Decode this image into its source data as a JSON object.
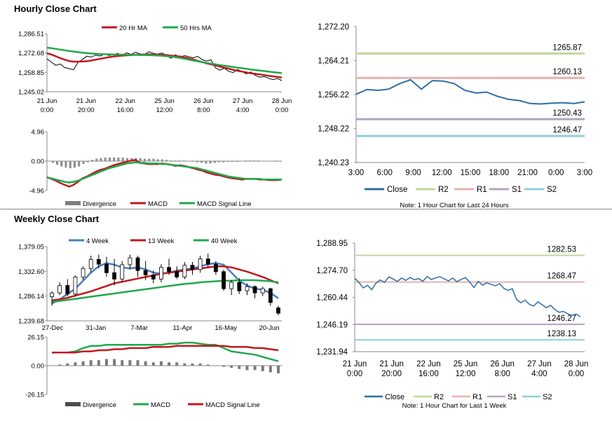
{
  "titles": {
    "hourly": "Hourly Close Chart",
    "weekly": "Weekly Close Chart"
  },
  "colors": {
    "red": "#c0181f",
    "green": "#1fa84b",
    "blue": "#4a7ebb",
    "darkblue": "#2e6da4",
    "r2": "#c3d69b",
    "r1": "#e6b0ae",
    "s1": "#b3a2c7",
    "s2": "#92cddc",
    "gray": "#7f7f7f"
  },
  "chart_data": [
    {
      "id": "hourly_price",
      "type": "line",
      "legend": [
        "20 Hr MA",
        "50 Hrs MA"
      ],
      "y_ticks": [
        "1,286.51",
        "1,272.68",
        "1,258.85",
        "1,245.02"
      ],
      "ylim": [
        1245.02,
        1286.51
      ],
      "x_ticks": [
        [
          "21 Jun",
          "0:00"
        ],
        [
          "21 Jun",
          "20:00"
        ],
        [
          "22 Jun",
          "16:00"
        ],
        [
          "25 Jun",
          "12:00"
        ],
        [
          "26 Jun",
          "8:00"
        ],
        [
          "27 Jun",
          "4:00"
        ],
        [
          "28 Jun",
          "0:00"
        ]
      ],
      "series": [
        {
          "name": "Close",
          "values": [
            1268.5,
            1266.2,
            1263.9,
            1264.8,
            1262.3,
            1261.5,
            1260.7,
            1265.9,
            1268.1,
            1270.4,
            1269.8,
            1271.2,
            1270.5,
            1272.0,
            1270.9,
            1271.6,
            1272.3,
            1271.0,
            1272.8,
            1271.7,
            1273.2,
            1272.0,
            1271.5,
            1273.6,
            1272.4,
            1271.9,
            1272.7,
            1270.8,
            1268.9,
            1271.4,
            1269.6,
            1270.8,
            1270.1,
            1269.2,
            1270.3,
            1268.0,
            1266.9,
            1267.8,
            1262.1,
            1260.4,
            1261.8,
            1259.6,
            1258.7,
            1260.9,
            1259.4,
            1257.8,
            1259.1,
            1256.8,
            1255.4,
            1255.9,
            1254.6,
            1253.7,
            1254.5,
            1253.0
          ]
        },
        {
          "name": "20 Hr MA",
          "values": [
            1272.5,
            1271.6,
            1270.3,
            1269.0,
            1267.9,
            1266.9,
            1266.5,
            1266.5,
            1266.6,
            1266.8,
            1267.3,
            1267.9,
            1268.5,
            1269.1,
            1269.7,
            1270.2,
            1270.5,
            1270.8,
            1271.0,
            1271.2,
            1271.4,
            1271.5,
            1271.6,
            1271.7,
            1271.7,
            1271.6,
            1271.4,
            1271.2,
            1270.8,
            1270.5,
            1270.2,
            1269.6,
            1268.9,
            1268.0,
            1267.1,
            1266.2,
            1265.3,
            1264.6,
            1263.8,
            1263.0,
            1262.2,
            1261.5,
            1260.7,
            1260.0,
            1259.4,
            1258.8,
            1258.2,
            1257.8,
            1257.4,
            1256.9,
            1256.4,
            1256.0,
            1255.6,
            1255.1
          ]
        },
        {
          "name": "50 Hrs MA",
          "values": [
            1276.5,
            1276.1,
            1275.6,
            1275.1,
            1274.6,
            1274.1,
            1273.7,
            1273.3,
            1272.9,
            1272.6,
            1272.3,
            1272.1,
            1271.9,
            1271.8,
            1271.7,
            1271.6,
            1271.5,
            1271.5,
            1271.4,
            1271.3,
            1271.3,
            1271.2,
            1271.2,
            1271.1,
            1271.0,
            1270.9,
            1270.7,
            1270.4,
            1270.1,
            1269.7,
            1269.2,
            1268.6,
            1267.9,
            1267.3,
            1266.8,
            1266.2,
            1265.6,
            1265.1,
            1264.6,
            1264.1,
            1263.6,
            1263.2,
            1262.7,
            1262.2,
            1261.8,
            1261.4,
            1260.9,
            1260.5,
            1260.1,
            1259.8,
            1259.4,
            1259.0,
            1258.7,
            1258.3
          ]
        }
      ]
    },
    {
      "id": "hourly_macd",
      "type": "bar",
      "legend": [
        "Divergence",
        "MACD",
        "MACD Signal Line"
      ],
      "y_ticks": [
        "4.96",
        "0.00",
        "-4.96"
      ],
      "ylim": [
        -4.96,
        4.96
      ],
      "series": [
        {
          "name": "Divergence",
          "values": [
            0,
            -0.3,
            -0.6,
            -0.9,
            -1.1,
            -1.2,
            -1.1,
            -0.9,
            -0.5,
            -0.2,
            0.2,
            0.4,
            0.5,
            0.6,
            0.6,
            0.6,
            0.6,
            0.6,
            0.5,
            0.5,
            0.5,
            0.5,
            0.4,
            0.4,
            0.4,
            0.3,
            0.3,
            0.2,
            0.1,
            0.1,
            0.1,
            0.1,
            0,
            -0.1,
            -0.2,
            -0.3,
            -0.4,
            -0.4,
            -0.3,
            -0.2,
            -0.2,
            -0.1,
            -0.1,
            -0.1,
            0,
            0.1,
            0.1,
            0.1,
            0.1,
            0,
            0,
            0,
            -0.1,
            -0.1
          ]
        },
        {
          "name": "MACD",
          "values": [
            -2.7,
            -3.0,
            -3.3,
            -3.7,
            -4.0,
            -4.3,
            -4.0,
            -3.5,
            -2.9,
            -2.6,
            -2.2,
            -1.8,
            -1.5,
            -1.3,
            -1.0,
            -0.7,
            -0.5,
            -0.3,
            -0.1,
            0.1,
            0.2,
            -0.3,
            -0.4,
            -0.5,
            -0.5,
            -0.5,
            -0.4,
            -0.5,
            -0.6,
            -0.8,
            -0.7,
            -0.8,
            -1.0,
            -1.2,
            -1.4,
            -1.6,
            -1.9,
            -2.1,
            -2.3,
            -2.4,
            -2.6,
            -2.8,
            -2.9,
            -3.0,
            -3.1,
            -3.0,
            -3.0,
            -3.0,
            -3.1,
            -3.1,
            -3.2,
            -3.2,
            -3.2,
            -3.1
          ]
        },
        {
          "name": "MACD Signal Line",
          "values": [
            -2.8,
            -2.9,
            -3.1,
            -3.3,
            -3.5,
            -3.6,
            -3.5,
            -3.3,
            -3.0,
            -2.7,
            -2.4,
            -2.1,
            -1.8,
            -1.5,
            -1.2,
            -1.0,
            -0.8,
            -0.6,
            -0.4,
            -0.3,
            -0.2,
            -0.3,
            -0.3,
            -0.4,
            -0.4,
            -0.4,
            -0.5,
            -0.5,
            -0.6,
            -0.7,
            -0.8,
            -0.9,
            -1.0,
            -1.1,
            -1.2,
            -1.4,
            -1.6,
            -1.8,
            -2.0,
            -2.2,
            -2.4,
            -2.6,
            -2.7,
            -2.8,
            -2.9,
            -3.0,
            -3.0,
            -3.0,
            -3.0,
            -3.1,
            -3.1,
            -3.1,
            -3.1,
            -3.1
          ]
        }
      ]
    },
    {
      "id": "hourly_pivots",
      "type": "line",
      "y_ticks": [
        "1,272.20",
        "1,264.21",
        "1,256.22",
        "1,248.22",
        "1,240.23"
      ],
      "ylim": [
        1240.23,
        1272.2
      ],
      "x_ticks": [
        "3:00",
        "6:00",
        "9:00",
        "12:00",
        "15:00",
        "18:00",
        "21:00",
        "0:00",
        "3:00"
      ],
      "levels": [
        {
          "name": "R2",
          "value": 1265.87,
          "label": "1265.87"
        },
        {
          "name": "R1",
          "value": 1260.13,
          "label": "1260.13"
        },
        {
          "name": "S1",
          "value": 1250.43,
          "label": "1250.43"
        },
        {
          "name": "S2",
          "value": 1246.47,
          "label": "1246.47"
        }
      ],
      "series": [
        {
          "name": "Close",
          "values": [
            1256.3,
            1257.4,
            1257.2,
            1257.5,
            1258.8,
            1259.7,
            1257.5,
            1259.5,
            1259.4,
            1258.8,
            1257.2,
            1256.6,
            1256.8,
            1255.8,
            1255.1,
            1254.8,
            1254.1,
            1254.0,
            1254.2,
            1254.3,
            1254.1,
            1254.5
          ]
        }
      ],
      "legend": [
        "Close",
        "R2",
        "R1",
        "S1",
        "S2"
      ],
      "note": "Note: 1 Hour Chart for Last 24 Hours"
    },
    {
      "id": "weekly_price",
      "type": "candlestick",
      "legend": [
        "4 Week",
        "13 Week",
        "40 Week"
      ],
      "y_ticks": [
        "1,379.05",
        "1,332.60",
        "1,286.14",
        "1,239.68"
      ],
      "ylim": [
        1239.68,
        1379.05
      ],
      "x_ticks": [
        "27-Dec",
        "31-Jan",
        "7-Mar",
        "11-Apr",
        "16-May",
        "20-Jun"
      ],
      "candles": [
        [
          1285,
          1295,
          1268,
          1292
        ],
        [
          1292,
          1312,
          1288,
          1306
        ],
        [
          1306,
          1318,
          1286,
          1290
        ],
        [
          1290,
          1325,
          1285,
          1322
        ],
        [
          1322,
          1342,
          1316,
          1338
        ],
        [
          1338,
          1362,
          1330,
          1355
        ],
        [
          1355,
          1364,
          1338,
          1346
        ],
        [
          1346,
          1360,
          1322,
          1330
        ],
        [
          1330,
          1356,
          1306,
          1318
        ],
        [
          1318,
          1352,
          1312,
          1345
        ],
        [
          1345,
          1364,
          1336,
          1358
        ],
        [
          1358,
          1362,
          1322,
          1334
        ],
        [
          1334,
          1352,
          1316,
          1326
        ],
        [
          1326,
          1334,
          1310,
          1318
        ],
        [
          1318,
          1346,
          1312,
          1340
        ],
        [
          1340,
          1356,
          1326,
          1332
        ],
        [
          1332,
          1342,
          1318,
          1322
        ],
        [
          1322,
          1350,
          1318,
          1344
        ],
        [
          1344,
          1350,
          1326,
          1336
        ],
        [
          1336,
          1362,
          1330,
          1356
        ],
        [
          1356,
          1366,
          1340,
          1346
        ],
        [
          1346,
          1352,
          1326,
          1332
        ],
        [
          1332,
          1336,
          1296,
          1300
        ],
        [
          1300,
          1316,
          1288,
          1312
        ],
        [
          1312,
          1320,
          1290,
          1296
        ],
        [
          1296,
          1310,
          1288,
          1304
        ],
        [
          1304,
          1306,
          1282,
          1292
        ],
        [
          1292,
          1304,
          1286,
          1300
        ],
        [
          1300,
          1302,
          1268,
          1274
        ],
        [
          1264,
          1268,
          1250,
          1254
        ]
      ],
      "series": [
        {
          "name": "4 Week",
          "values": [
            1272,
            1280,
            1290,
            1300,
            1315,
            1330,
            1342,
            1348,
            1345,
            1340,
            1338,
            1340,
            1336,
            1330,
            1328,
            1330,
            1334,
            1336,
            1338,
            1342,
            1346,
            1348,
            1345,
            1330,
            1315,
            1306,
            1300,
            1298,
            1292,
            1282
          ]
        },
        {
          "name": "13 Week",
          "values": [
            1278,
            1280,
            1283,
            1287,
            1291,
            1295,
            1300,
            1305,
            1310,
            1313,
            1316,
            1319,
            1322,
            1325,
            1328,
            1330,
            1332,
            1334,
            1336,
            1338,
            1340,
            1342,
            1342,
            1340,
            1336,
            1332,
            1327,
            1322,
            1316,
            1310
          ]
        },
        {
          "name": "40 Week",
          "values": [
            1275,
            1277,
            1279,
            1281,
            1283,
            1285,
            1287,
            1289,
            1291,
            1293,
            1295,
            1297,
            1299,
            1301,
            1303,
            1305,
            1307,
            1309,
            1310,
            1312,
            1313,
            1314,
            1315,
            1315,
            1316,
            1316,
            1316,
            1315,
            1314,
            1312
          ]
        }
      ]
    },
    {
      "id": "weekly_macd",
      "type": "bar",
      "legend": [
        "Divergence",
        "MACD",
        "MACD Signal Line"
      ],
      "y_ticks": [
        "26.15",
        "0.00",
        "-26.15"
      ],
      "ylim": [
        -26.15,
        26.15
      ],
      "series": [
        {
          "name": "Divergence",
          "values": [
            0,
            1,
            2,
            3,
            4,
            5,
            5,
            6,
            6,
            5,
            5,
            5,
            4,
            3,
            4,
            3,
            3,
            2,
            2,
            2,
            1,
            0,
            -1,
            -2,
            -3,
            -4,
            -4,
            -5,
            -6,
            -7
          ]
        },
        {
          "name": "MACD",
          "values": [
            12,
            12,
            12,
            13,
            16,
            18,
            18,
            19,
            19,
            19,
            19,
            19,
            19,
            19,
            19,
            20,
            20,
            21,
            21,
            20,
            19,
            19,
            16,
            13,
            12,
            11,
            10,
            8,
            6,
            4
          ]
        },
        {
          "name": "MACD Signal Line",
          "values": [
            12,
            12,
            12,
            12,
            13,
            13,
            14,
            14,
            15,
            15,
            16,
            16,
            16,
            17,
            17,
            17,
            18,
            18,
            18,
            18,
            18,
            18,
            18,
            17,
            17,
            17,
            16,
            16,
            15,
            14
          ]
        }
      ]
    },
    {
      "id": "weekly_pivots",
      "type": "line",
      "y_ticks": [
        "1,288.95",
        "1,274.70",
        "1,260.44",
        "1,246.19",
        "1,231.94"
      ],
      "ylim": [
        1231.94,
        1288.95
      ],
      "x_ticks": [
        [
          "21 Jun",
          "0:00"
        ],
        [
          "21 Jun",
          "20:00"
        ],
        [
          "22 Jun",
          "16:00"
        ],
        [
          "25 Jun",
          "12:00"
        ],
        [
          "26 Jun",
          "8:00"
        ],
        [
          "27 Jun",
          "4:00"
        ],
        [
          "28 Jun",
          "0:00"
        ]
      ],
      "levels": [
        {
          "name": "R2",
          "value": 1282.53,
          "label": "1282.53"
        },
        {
          "name": "R1",
          "value": 1268.47,
          "label": "1268.47"
        },
        {
          "name": "S1",
          "value": 1246.27,
          "label": "1246.27"
        },
        {
          "name": "S2",
          "value": 1238.13,
          "label": "1238.13"
        }
      ],
      "series": [
        {
          "name": "Close",
          "values": [
            1270.5,
            1268.2,
            1265.4,
            1266.8,
            1264.5,
            1267.9,
            1269.6,
            1268.3,
            1271.2,
            1270.1,
            1268.8,
            1270.6,
            1269.4,
            1270.9,
            1269.7,
            1270.3,
            1268.9,
            1271.4,
            1269.8,
            1270.7,
            1271.3,
            1270.2,
            1269.1,
            1270.6,
            1268.7,
            1269.9,
            1270.8,
            1268.5,
            1265.6,
            1268.9,
            1266.8,
            1268.1,
            1267.3,
            1266.5,
            1267.6,
            1265.2,
            1264.1,
            1265.0,
            1259.3,
            1257.6,
            1259.0,
            1256.8,
            1255.9,
            1258.1,
            1256.6,
            1255.0,
            1256.3,
            1254.0,
            1252.6,
            1253.1,
            1251.8,
            1250.9,
            1251.7,
            1250.2
          ]
        }
      ],
      "legend": [
        "Close",
        "R2",
        "R1",
        "S1",
        "S2"
      ],
      "note": "Note: 1 Hour Chart for Last 1 Week"
    }
  ]
}
